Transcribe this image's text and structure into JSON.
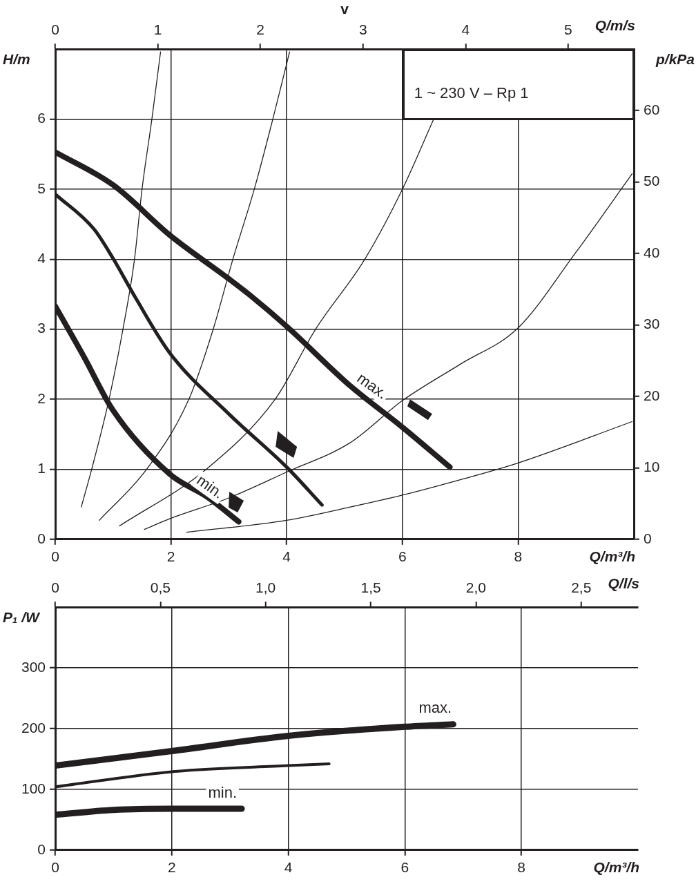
{
  "chart_data": [
    {
      "type": "line",
      "subtitle": "1 ~ 230 V – Rp 1",
      "xlabel": "Q/m³/h",
      "ylabel": "H/m",
      "y2label": "p/kPa",
      "x2label": "Q/m/s",
      "annotations": [
        "v",
        "max.",
        "min."
      ],
      "xlim": [
        0,
        10
      ],
      "xticks": [
        0,
        2,
        4,
        6,
        8
      ],
      "ylim": [
        0,
        7
      ],
      "yticks": [
        0,
        1,
        2,
        3,
        4,
        5,
        6
      ],
      "y2lim": [
        0,
        68.6
      ],
      "y2ticks": [
        0,
        10,
        20,
        30,
        40,
        50,
        60
      ],
      "x2lim": [
        0,
        5.64
      ],
      "x2ticks": [
        0,
        1,
        2,
        3,
        4,
        5
      ],
      "grid": true,
      "legend": false,
      "marker": "none",
      "line_style": "solid",
      "series": [
        {
          "color": "#231f20",
          "x": [
            0,
            1,
            2,
            3,
            3.36,
            4,
            5.1,
            6,
            6.82
          ],
          "values": [
            5.53,
            5.06,
            4.33,
            3.72,
            3.49,
            3.04,
            2.19,
            1.6,
            1.03
          ]
        },
        {
          "color": "#231f20",
          "x": [
            0,
            0.67,
            1,
            1.38,
            1.98,
            3,
            4,
            4.61
          ],
          "values": [
            4.93,
            4.43,
            4.01,
            3.46,
            2.66,
            1.79,
            1.03,
            0.49
          ]
        },
        {
          "color": "#231f20",
          "x": [
            0,
            0.5,
            1,
            1.98,
            2.65,
            3.17
          ],
          "values": [
            3.33,
            2.6,
            1.84,
            0.93,
            0.59,
            0.25
          ]
        },
        {
          "color": "#231f20",
          "x": [
            0.45,
            0.63,
            0.93,
            1.17,
            1.37,
            1.5,
            1.67,
            1.82
          ],
          "values": [
            0.46,
            1,
            2,
            3,
            4,
            5,
            6,
            6.96
          ]
        },
        {
          "color": "#231f20",
          "x": [
            0.76,
            1.58,
            2.31,
            2.73,
            3.07,
            3.44,
            3.76,
            4.05
          ],
          "values": [
            0.27,
            1,
            2,
            3,
            4,
            5,
            6,
            6.96
          ]
        },
        {
          "color": "#231f20",
          "x": [
            1.11,
            2.61,
            3.8,
            4.5,
            5.35,
            6,
            6.54
          ],
          "values": [
            0.19,
            1,
            2,
            3,
            4,
            5,
            6
          ]
        },
        {
          "color": "#231f20",
          "x": [
            1.54,
            2,
            3,
            4,
            5.1,
            6,
            7,
            8,
            9,
            9.97
          ],
          "values": [
            0.14,
            0.3,
            0.59,
            0.96,
            1.38,
            1.98,
            2.5,
            3.02,
            4.1,
            5.22
          ]
        },
        {
          "color": "#231f20",
          "x": [
            2.27,
            4,
            5.1,
            6,
            7,
            8,
            9.97
          ],
          "values": [
            0.1,
            0.27,
            0.46,
            0.63,
            0.85,
            1.09,
            1.68
          ]
        }
      ]
    },
    {
      "type": "line",
      "xlabel": "Q/m³/h",
      "ylabel": "P₁ /W",
      "x2label": "Q/l/s",
      "annotations": [
        "max.",
        "min."
      ],
      "xlim": [
        0,
        10
      ],
      "xticks": [
        0,
        2,
        4,
        6,
        8
      ],
      "ylim": [
        0,
        400
      ],
      "yticks": [
        0,
        100,
        200,
        300
      ],
      "x2lim": [
        0,
        2.77
      ],
      "x2ticks": [
        0,
        {
          "value": 0.5,
          "label": "0,5"
        },
        {
          "value": 1,
          "label": "1,0"
        },
        {
          "value": 1.5,
          "label": "1,5"
        },
        {
          "value": 2,
          "label": "2,0"
        },
        {
          "value": 2.5,
          "label": "2,5"
        }
      ],
      "grid": true,
      "legend": false,
      "marker": "none",
      "line_style": "solid",
      "series": [
        {
          "color": "#231f20",
          "x": [
            0,
            2,
            4,
            6,
            6.83
          ],
          "values": [
            139,
            163,
            188,
            203,
            207
          ]
        },
        {
          "color": "#231f20",
          "x": [
            0,
            2,
            4,
            4.7
          ],
          "values": [
            104,
            129,
            139,
            142
          ]
        },
        {
          "color": "#231f20",
          "x": [
            0,
            1,
            2,
            3.2
          ],
          "values": [
            58,
            66,
            68,
            68
          ]
        }
      ]
    }
  ]
}
